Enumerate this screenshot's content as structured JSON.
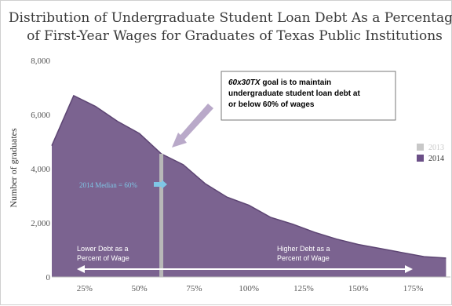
{
  "chart_data": {
    "type": "area",
    "title_lines": [
      "Distribution of Undergraduate Student Loan Debt As a Percentage",
      "of First-Year Wages for Graduates of Texas Public Institutions"
    ],
    "xlabel": "",
    "ylabel": "Number of graduates",
    "xlim": [
      10,
      192
    ],
    "ylim": [
      0,
      8000
    ],
    "x_ticks": [
      25,
      50,
      75,
      100,
      125,
      150,
      175
    ],
    "x_tick_labels": [
      "25%",
      "50%",
      "75%",
      "100%",
      "125%",
      "150%",
      "175%"
    ],
    "y_ticks": [
      0,
      2000,
      4000,
      6000,
      8000
    ],
    "y_tick_labels": [
      "0",
      "2,000",
      "4,000",
      "6,000",
      "8,000"
    ],
    "series": [
      {
        "name": "2014",
        "color": "#7b6390",
        "x": [
          10,
          20,
          30,
          40,
          50,
          60,
          70,
          80,
          90,
          100,
          110,
          120,
          130,
          140,
          150,
          160,
          170,
          180,
          190
        ],
        "values": [
          4850,
          6700,
          6300,
          5750,
          5300,
          4550,
          4150,
          3450,
          2950,
          2650,
          2200,
          1950,
          1650,
          1400,
          1200,
          1050,
          900,
          750,
          700
        ]
      }
    ],
    "marker": {
      "x": 60,
      "value": 4550,
      "series": "2013",
      "color": "#b8b8b8"
    },
    "legend": {
      "position": "right",
      "items": [
        {
          "label": "2013",
          "color": "#c8c8c8",
          "text_color": "#c8c8c8"
        },
        {
          "label": "2014",
          "color": "#6b4f87",
          "text_color": "#333333"
        }
      ]
    },
    "annotations": {
      "median": {
        "text": "2014 Median = 60%",
        "color": "#7fc6e6"
      },
      "callout": {
        "bold_italic": "60x30TX",
        "rest_first": " goal is to maintain",
        "line2": "undergraduate student loan debt at",
        "line3": "or below 60% of wages"
      },
      "lower": [
        "Lower Debt as a",
        "Percent of Wage"
      ],
      "higher": [
        "Higher Debt as a",
        "Percent of Wage"
      ]
    },
    "grid": false
  }
}
